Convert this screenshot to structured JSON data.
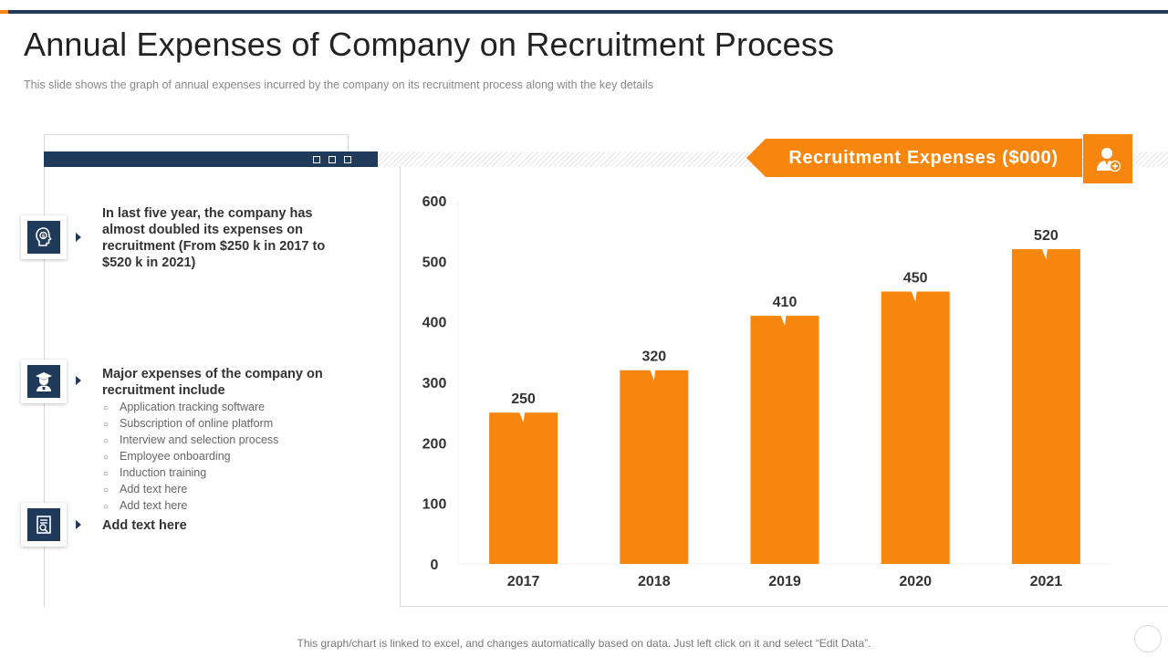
{
  "header": {
    "title": "Annual Expenses of Company on Recruitment Process",
    "subtitle": "This slide shows the graph  of annual  expenses incurred  by the company  on its recruitment  process along with the key details"
  },
  "points": [
    {
      "icon": "finance-head-icon",
      "text": "In last five year, the company  has almost doubled its expenses on recruitment (From $250 k in 2017 to $520 k in 2021)"
    },
    {
      "icon": "graduate-icon",
      "text": "Major expenses of the company  on recruitment include",
      "bullets": [
        "Application tracking software",
        "Subscription of online platform",
        "Interview  and selection process",
        "Employee onboarding",
        "Induction training",
        "Add text here",
        "Add text here"
      ]
    },
    {
      "icon": "document-icon",
      "text": "Add  text here"
    }
  ],
  "legend": {
    "label": "Recruitment  Expenses  ($000)",
    "icon": "user-add-icon"
  },
  "footer": "This graph/chart is linked to excel,  and changes automatically based on data. Just left click on it and select “Edit Data”.",
  "colors": {
    "accent": "#f7860e",
    "navy": "#1f3a5b"
  },
  "chart_data": {
    "type": "bar",
    "title": "Recruitment  Expenses  ($000)",
    "categories": [
      "2017",
      "2018",
      "2019",
      "2020",
      "2021"
    ],
    "values": [
      250,
      320,
      410,
      450,
      520
    ],
    "value_labels": [
      "250",
      "320",
      "410",
      "450",
      "520"
    ],
    "ylim": [
      0,
      600
    ],
    "yticks": [
      0,
      100,
      200,
      300,
      400,
      500,
      600
    ],
    "ytick_labels": [
      "0",
      "100",
      "200",
      "300",
      "400",
      "500",
      "600"
    ],
    "xlabel": "",
    "ylabel": "",
    "grid": false
  }
}
